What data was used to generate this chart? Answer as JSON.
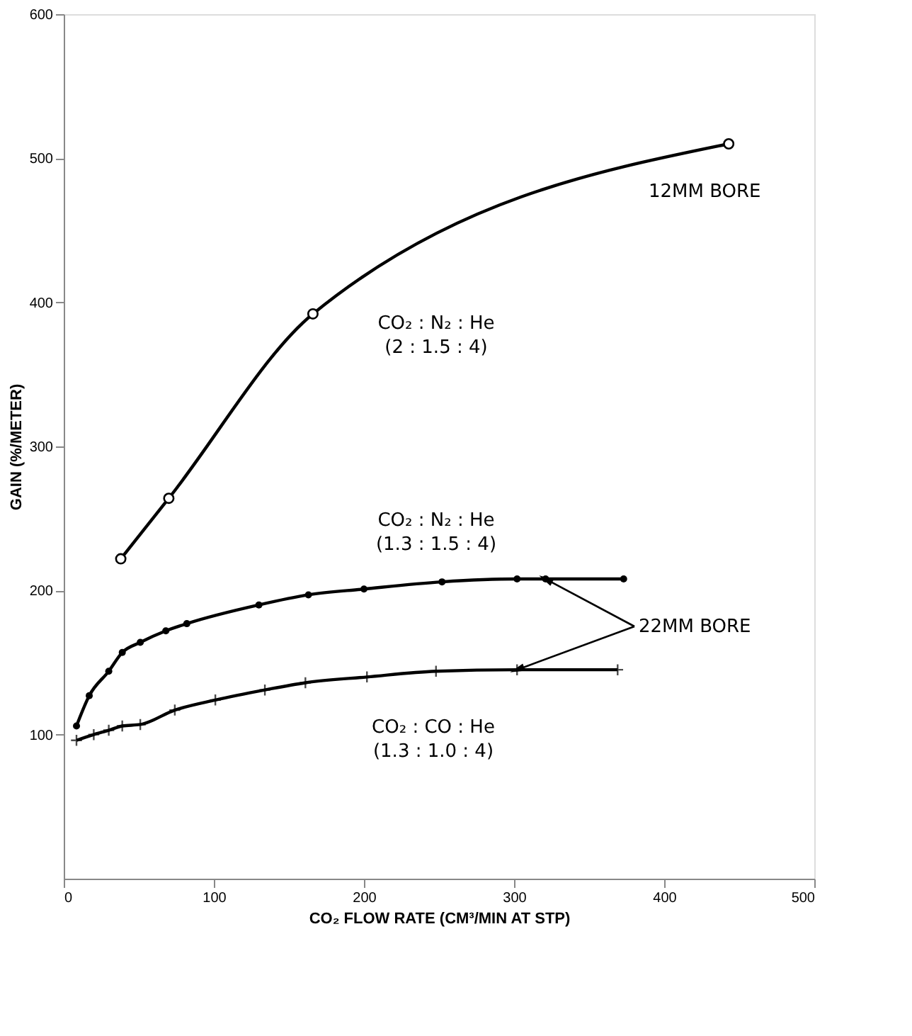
{
  "chart_data": {
    "type": "line",
    "xlabel": "CO₂ FLOW RATE (CM³/MIN AT STP)",
    "ylabel": "GAIN (%/METER)",
    "xlim": [
      0,
      500
    ],
    "xticks": [
      0,
      100,
      200,
      300,
      400,
      500
    ],
    "ylim": [
      0,
      600
    ],
    "yticks": [
      100,
      200,
      300,
      400,
      500,
      600
    ],
    "grid": false,
    "line_style": "solid",
    "series": [
      {
        "name": "CO₂ : N₂ : He\n(2 : 1.5 : 4)",
        "color": "#000000",
        "marker": "circle",
        "x": [
          38,
          70,
          166,
          443
        ],
        "values": [
          222,
          264,
          392,
          510
        ]
      },
      {
        "name": "CO₂ : N₂ : He\n(1.3 : 1.5 : 4)",
        "color": "#000000",
        "marker": "circle",
        "x": [
          8.5,
          17,
          30,
          39,
          51,
          68,
          82,
          130,
          163,
          200,
          252,
          302,
          321,
          373
        ],
        "values": [
          106,
          127,
          144,
          157,
          164,
          172,
          177,
          190,
          197,
          201,
          206,
          208,
          208,
          208
        ]
      },
      {
        "name": "CO₂ : CO : He\n(1.3 : 1.0 : 4)",
        "color": "#000000",
        "marker": "cross",
        "x": [
          8.5,
          20,
          30,
          39,
          51,
          74,
          101,
          134,
          161,
          202,
          248,
          302,
          369
        ],
        "values": [
          96,
          100,
          103,
          106,
          107,
          117,
          124,
          131,
          136,
          140,
          144,
          145,
          145
        ]
      }
    ],
    "annotations": [
      "12MM BORE",
      {
        "text": "22MM BORE",
        "x": 321,
        "y": 208
      }
    ]
  }
}
